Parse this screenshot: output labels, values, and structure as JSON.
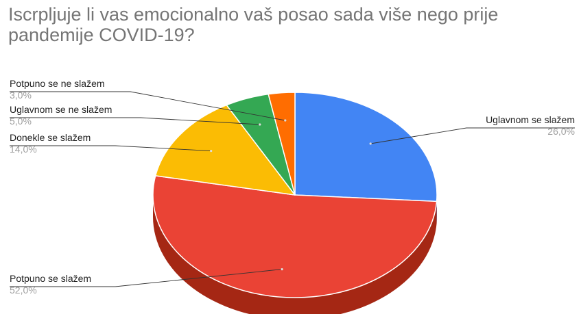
{
  "chart_data": {
    "type": "pie",
    "title": "Iscrpljuje li vas emocionalno vaš posao sada više nego prije pandemije COVID-19?",
    "slices": [
      {
        "label": "Uglavnom se slažem",
        "value": 26.0,
        "value_label": "26,0%",
        "color": "#4285f4",
        "side_color": "#3367c7"
      },
      {
        "label": "Potpuno se slažem",
        "value": 52.0,
        "value_label": "52,0%",
        "color": "#ea4335",
        "side_color": "#a52714"
      },
      {
        "label": "Donekle se slažem",
        "value": 14.0,
        "value_label": "14,0%",
        "color": "#fbbc04",
        "side_color": "#c49000"
      },
      {
        "label": "Uglavnom se ne slažem",
        "value": 5.0,
        "value_label": "5,0%",
        "color": "#34a853",
        "side_color": "#25803d"
      },
      {
        "label": "Potpuno se ne slažem",
        "value": 3.0,
        "value_label": "3,0%",
        "color": "#ff6d01",
        "side_color": "#c25200"
      }
    ]
  }
}
